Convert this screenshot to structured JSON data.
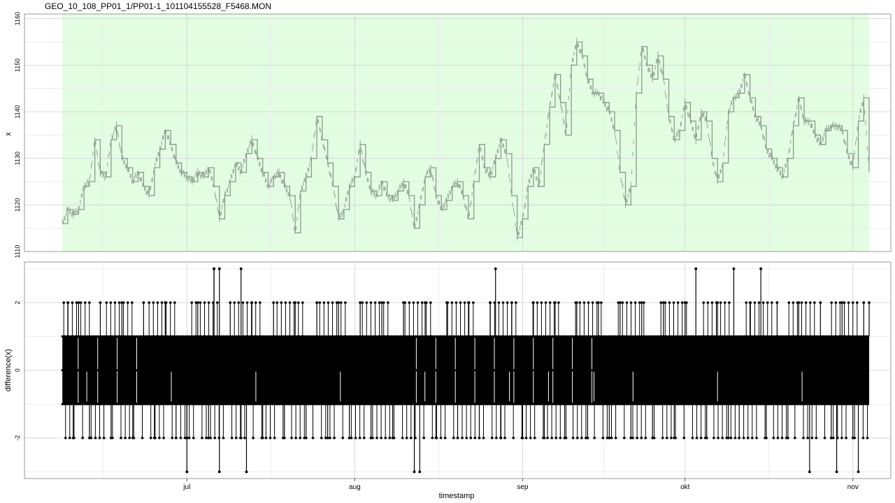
{
  "title": "GEO_10_108_PP01_1/PP01-1_101104155528_F5468.MON",
  "xlabel": "timestamp",
  "colors": {
    "panel_highlight": "#e2fde2",
    "series_top": "#8a9a8a",
    "series_bottom": "#000000",
    "grid": "#d8d8d8"
  },
  "x_ticks": [
    {
      "label": "jul",
      "date": "2010-07-01"
    },
    {
      "label": "aug",
      "date": "2010-08-01"
    },
    {
      "label": "sep",
      "date": "2010-09-01"
    },
    {
      "label": "okt",
      "date": "2010-10-01"
    },
    {
      "label": "nov",
      "date": "2010-11-01"
    }
  ],
  "chart_data": [
    {
      "type": "line",
      "ylabel": "x",
      "xlim": [
        "2010-06-01",
        "2010-11-08"
      ],
      "ylim": [
        1110,
        1161
      ],
      "y_ticks": [
        1110,
        1120,
        1130,
        1140,
        1150,
        1160
      ],
      "highlight_range": [
        "2010-06-08",
        "2010-11-04"
      ],
      "series": [
        {
          "points": [
            [
              "2010-06-08",
              1116
            ],
            [
              "2010-06-09",
              1119
            ],
            [
              "2010-06-10",
              1118
            ],
            [
              "2010-06-11",
              1119
            ],
            [
              "2010-06-12",
              1124
            ],
            [
              "2010-06-13",
              1125
            ],
            [
              "2010-06-14",
              1134
            ],
            [
              "2010-06-15",
              1127
            ],
            [
              "2010-06-16",
              1126
            ],
            [
              "2010-06-17",
              1134
            ],
            [
              "2010-06-18",
              1137
            ],
            [
              "2010-06-19",
              1130
            ],
            [
              "2010-06-20",
              1128
            ],
            [
              "2010-06-21",
              1125
            ],
            [
              "2010-06-22",
              1127
            ],
            [
              "2010-06-23",
              1124
            ],
            [
              "2010-06-24",
              1122
            ],
            [
              "2010-06-25",
              1128
            ],
            [
              "2010-06-26",
              1132
            ],
            [
              "2010-06-27",
              1136
            ],
            [
              "2010-06-28",
              1133
            ],
            [
              "2010-06-29",
              1129
            ],
            [
              "2010-06-30",
              1127
            ],
            [
              "2010-07-01",
              1126
            ],
            [
              "2010-07-02",
              1125
            ],
            [
              "2010-07-03",
              1127
            ],
            [
              "2010-07-04",
              1126
            ],
            [
              "2010-07-05",
              1128
            ],
            [
              "2010-07-06",
              1124
            ],
            [
              "2010-07-07",
              1117
            ],
            [
              "2010-07-08",
              1122
            ],
            [
              "2010-07-09",
              1125
            ],
            [
              "2010-07-10",
              1129
            ],
            [
              "2010-07-11",
              1127
            ],
            [
              "2010-07-12",
              1131
            ],
            [
              "2010-07-13",
              1134
            ],
            [
              "2010-07-14",
              1130
            ],
            [
              "2010-07-15",
              1127
            ],
            [
              "2010-07-16",
              1124
            ],
            [
              "2010-07-17",
              1126
            ],
            [
              "2010-07-18",
              1127
            ],
            [
              "2010-07-19",
              1124
            ],
            [
              "2010-07-20",
              1122
            ],
            [
              "2010-07-21",
              1114
            ],
            [
              "2010-07-22",
              1123
            ],
            [
              "2010-07-23",
              1126
            ],
            [
              "2010-07-24",
              1130
            ],
            [
              "2010-07-25",
              1139
            ],
            [
              "2010-07-26",
              1134
            ],
            [
              "2010-07-27",
              1129
            ],
            [
              "2010-07-28",
              1124
            ],
            [
              "2010-07-29",
              1117
            ],
            [
              "2010-07-30",
              1119
            ],
            [
              "2010-07-31",
              1124
            ],
            [
              "2010-08-01",
              1126
            ],
            [
              "2010-08-02",
              1133
            ],
            [
              "2010-08-03",
              1127
            ],
            [
              "2010-08-04",
              1123
            ],
            [
              "2010-08-05",
              1122
            ],
            [
              "2010-08-06",
              1125
            ],
            [
              "2010-08-07",
              1122
            ],
            [
              "2010-08-08",
              1121
            ],
            [
              "2010-08-09",
              1123
            ],
            [
              "2010-08-10",
              1125
            ],
            [
              "2010-08-11",
              1122
            ],
            [
              "2010-08-12",
              1115
            ],
            [
              "2010-08-13",
              1120
            ],
            [
              "2010-08-14",
              1126
            ],
            [
              "2010-08-15",
              1128
            ],
            [
              "2010-08-16",
              1122
            ],
            [
              "2010-08-17",
              1119
            ],
            [
              "2010-08-18",
              1121
            ],
            [
              "2010-08-19",
              1124
            ],
            [
              "2010-08-20",
              1125
            ],
            [
              "2010-08-21",
              1122
            ],
            [
              "2010-08-22",
              1117
            ],
            [
              "2010-08-23",
              1125
            ],
            [
              "2010-08-24",
              1133
            ],
            [
              "2010-08-25",
              1128
            ],
            [
              "2010-08-26",
              1126
            ],
            [
              "2010-08-27",
              1130
            ],
            [
              "2010-08-28",
              1134
            ],
            [
              "2010-08-29",
              1131
            ],
            [
              "2010-08-30",
              1122
            ],
            [
              "2010-08-31",
              1113
            ],
            [
              "2010-09-01",
              1117
            ],
            [
              "2010-09-02",
              1124
            ],
            [
              "2010-09-03",
              1128
            ],
            [
              "2010-09-04",
              1124
            ],
            [
              "2010-09-05",
              1133
            ],
            [
              "2010-09-06",
              1141
            ],
            [
              "2010-09-07",
              1148
            ],
            [
              "2010-09-08",
              1142
            ],
            [
              "2010-09-09",
              1135
            ],
            [
              "2010-09-10",
              1150
            ],
            [
              "2010-09-11",
              1155
            ],
            [
              "2010-09-12",
              1152
            ],
            [
              "2010-09-13",
              1147
            ],
            [
              "2010-09-14",
              1144
            ],
            [
              "2010-09-15",
              1144
            ],
            [
              "2010-09-16",
              1142
            ],
            [
              "2010-09-17",
              1140
            ],
            [
              "2010-09-18",
              1136
            ],
            [
              "2010-09-19",
              1127
            ],
            [
              "2010-09-20",
              1120
            ],
            [
              "2010-09-21",
              1124
            ],
            [
              "2010-09-22",
              1144
            ],
            [
              "2010-09-23",
              1154
            ],
            [
              "2010-09-24",
              1150
            ],
            [
              "2010-09-25",
              1147
            ],
            [
              "2010-09-26",
              1152
            ],
            [
              "2010-09-27",
              1147
            ],
            [
              "2010-09-28",
              1139
            ],
            [
              "2010-09-29",
              1134
            ],
            [
              "2010-09-30",
              1136
            ],
            [
              "2010-10-01",
              1142
            ],
            [
              "2010-10-02",
              1138
            ],
            [
              "2010-10-03",
              1134
            ],
            [
              "2010-10-04",
              1140
            ],
            [
              "2010-10-05",
              1138
            ],
            [
              "2010-10-06",
              1130
            ],
            [
              "2010-10-07",
              1125
            ],
            [
              "2010-10-08",
              1129
            ],
            [
              "2010-10-09",
              1140
            ],
            [
              "2010-10-10",
              1143
            ],
            [
              "2010-10-11",
              1144
            ],
            [
              "2010-10-12",
              1148
            ],
            [
              "2010-10-13",
              1143
            ],
            [
              "2010-10-14",
              1139
            ],
            [
              "2010-10-15",
              1137
            ],
            [
              "2010-10-16",
              1132
            ],
            [
              "2010-10-17",
              1130
            ],
            [
              "2010-10-18",
              1128
            ],
            [
              "2010-10-19",
              1126
            ],
            [
              "2010-10-20",
              1130
            ],
            [
              "2010-10-21",
              1137
            ],
            [
              "2010-10-22",
              1143
            ],
            [
              "2010-10-23",
              1138
            ],
            [
              "2010-10-24",
              1138
            ],
            [
              "2010-10-25",
              1135
            ],
            [
              "2010-10-26",
              1133
            ],
            [
              "2010-10-27",
              1136
            ],
            [
              "2010-10-28",
              1137
            ],
            [
              "2010-10-29",
              1137
            ],
            [
              "2010-10-30",
              1136
            ],
            [
              "2010-10-31",
              1131
            ],
            [
              "2010-11-01",
              1128
            ],
            [
              "2010-11-02",
              1138
            ],
            [
              "2010-11-03",
              1143
            ],
            [
              "2010-11-04",
              1127
            ]
          ]
        }
      ]
    },
    {
      "type": "scatter",
      "ylabel": "difference(x)",
      "xlabel": "timestamp",
      "xlim": [
        "2010-06-01",
        "2010-11-08"
      ],
      "ylim": [
        -3.2,
        3.2
      ],
      "y_ticks": [
        -2,
        0,
        2
      ],
      "band_values": [
        -1,
        0,
        1
      ],
      "band_range": [
        "2010-06-08",
        "2010-11-04"
      ],
      "series": [
        {
          "points": [
            [
              "2010-06-09",
              2
            ],
            [
              "2010-06-10",
              -2
            ],
            [
              "2010-06-11",
              2
            ],
            [
              "2010-06-13",
              -2
            ],
            [
              "2010-06-15",
              2
            ],
            [
              "2010-06-17",
              -2
            ],
            [
              "2010-06-19",
              2
            ],
            [
              "2010-06-21",
              -2
            ],
            [
              "2010-06-23",
              2
            ],
            [
              "2010-06-25",
              -2
            ],
            [
              "2010-06-27",
              2
            ],
            [
              "2010-06-29",
              -2
            ],
            [
              "2010-07-01",
              -2
            ],
            [
              "2010-07-01",
              -3
            ],
            [
              "2010-07-03",
              2
            ],
            [
              "2010-07-05",
              -2
            ],
            [
              "2010-07-06",
              3
            ],
            [
              "2010-07-06",
              3
            ],
            [
              "2010-07-07",
              3
            ],
            [
              "2010-07-07",
              -3
            ],
            [
              "2010-07-09",
              2
            ],
            [
              "2010-07-11",
              -2
            ],
            [
              "2010-07-11",
              3
            ],
            [
              "2010-07-12",
              -3
            ],
            [
              "2010-07-13",
              2
            ],
            [
              "2010-07-15",
              -2
            ],
            [
              "2010-07-17",
              2
            ],
            [
              "2010-07-19",
              -2
            ],
            [
              "2010-07-21",
              2
            ],
            [
              "2010-07-23",
              -2
            ],
            [
              "2010-07-25",
              2
            ],
            [
              "2010-07-27",
              -2
            ],
            [
              "2010-07-29",
              2
            ],
            [
              "2010-07-31",
              -2
            ],
            [
              "2010-08-02",
              2
            ],
            [
              "2010-08-04",
              -2
            ],
            [
              "2010-08-06",
              2
            ],
            [
              "2010-08-08",
              -2
            ],
            [
              "2010-08-10",
              2
            ],
            [
              "2010-08-12",
              -3
            ],
            [
              "2010-08-13",
              -3
            ],
            [
              "2010-08-14",
              2
            ],
            [
              "2010-08-16",
              -2
            ],
            [
              "2010-08-18",
              2
            ],
            [
              "2010-08-20",
              -2
            ],
            [
              "2010-08-22",
              2
            ],
            [
              "2010-08-24",
              -2
            ],
            [
              "2010-08-26",
              2
            ],
            [
              "2010-08-27",
              3
            ],
            [
              "2010-08-28",
              -2
            ],
            [
              "2010-08-30",
              2
            ],
            [
              "2010-09-01",
              -2
            ],
            [
              "2010-09-03",
              2
            ],
            [
              "2010-09-05",
              -2
            ],
            [
              "2010-09-07",
              2
            ],
            [
              "2010-09-09",
              -2
            ],
            [
              "2010-09-11",
              2
            ],
            [
              "2010-09-13",
              -2
            ],
            [
              "2010-09-15",
              2
            ],
            [
              "2010-09-17",
              -2
            ],
            [
              "2010-09-19",
              2
            ],
            [
              "2010-09-21",
              -2
            ],
            [
              "2010-09-23",
              2
            ],
            [
              "2010-09-25",
              -2
            ],
            [
              "2010-09-27",
              2
            ],
            [
              "2010-09-29",
              -2
            ],
            [
              "2010-10-01",
              2
            ],
            [
              "2010-10-03",
              3
            ],
            [
              "2010-10-05",
              -2
            ],
            [
              "2010-10-07",
              2
            ],
            [
              "2010-10-09",
              -2
            ],
            [
              "2010-10-10",
              3
            ],
            [
              "2010-10-11",
              -2
            ],
            [
              "2010-10-13",
              2
            ],
            [
              "2010-10-15",
              3
            ],
            [
              "2010-10-16",
              -2
            ],
            [
              "2010-10-18",
              2
            ],
            [
              "2010-10-20",
              -2
            ],
            [
              "2010-10-22",
              2
            ],
            [
              "2010-10-24",
              -3
            ],
            [
              "2010-10-26",
              2
            ],
            [
              "2010-10-28",
              -2
            ],
            [
              "2010-10-30",
              2
            ],
            [
              "2010-11-01",
              -2
            ],
            [
              "2010-11-02",
              -3
            ],
            [
              "2010-11-03",
              2
            ],
            [
              "2010-10-29",
              -3
            ],
            [
              "2010-11-04",
              2
            ]
          ]
        }
      ]
    }
  ]
}
